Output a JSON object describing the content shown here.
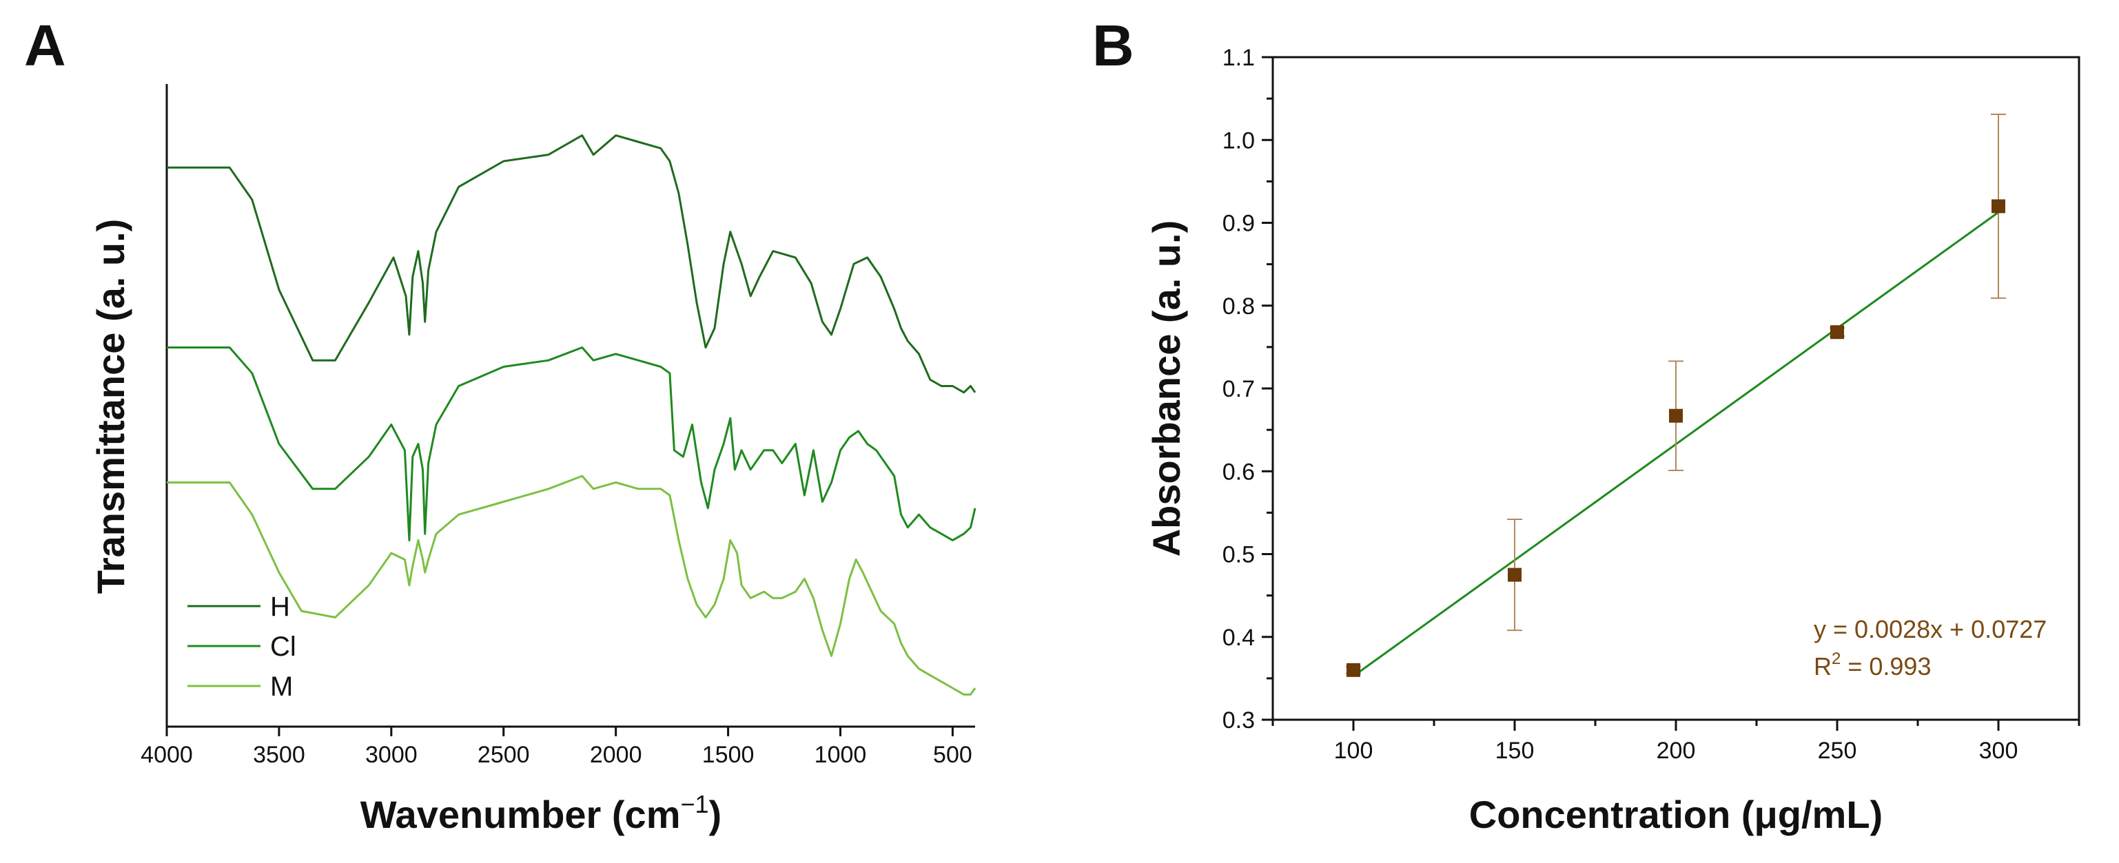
{
  "chart_data": [
    {
      "panel": "A",
      "type": "line",
      "xlabel": "Wavenumber (cm",
      "xlabel_sup": "−1",
      "xlabel_close": ")",
      "ylabel": "Transmittance (a. u.)",
      "xlim": [
        4000,
        400
      ],
      "xticks": [
        "4000",
        "3500",
        "3000",
        "2500",
        "2000",
        "1500",
        "1000",
        "500"
      ],
      "grid": false,
      "legend_position": "bottom-left",
      "series": [
        {
          "name": "H",
          "color": "#1e6b1e",
          "points": [
            [
              4000,
              87
            ],
            [
              3720,
              87
            ],
            [
              3620,
              82
            ],
            [
              3500,
              68
            ],
            [
              3350,
              57
            ],
            [
              3250,
              57
            ],
            [
              3100,
              66
            ],
            [
              2990,
              73
            ],
            [
              2935,
              67
            ],
            [
              2920,
              61
            ],
            [
              2905,
              70
            ],
            [
              2880,
              74
            ],
            [
              2860,
              69
            ],
            [
              2850,
              63
            ],
            [
              2835,
              71
            ],
            [
              2800,
              77
            ],
            [
              2700,
              84
            ],
            [
              2500,
              88
            ],
            [
              2300,
              89
            ],
            [
              2150,
              92
            ],
            [
              2100,
              89
            ],
            [
              2000,
              92
            ],
            [
              1900,
              91
            ],
            [
              1800,
              90
            ],
            [
              1760,
              88
            ],
            [
              1720,
              83
            ],
            [
              1680,
              75
            ],
            [
              1640,
              66
            ],
            [
              1600,
              59
            ],
            [
              1560,
              62
            ],
            [
              1520,
              72
            ],
            [
              1490,
              77
            ],
            [
              1440,
              72
            ],
            [
              1400,
              67
            ],
            [
              1360,
              70
            ],
            [
              1300,
              74
            ],
            [
              1200,
              73
            ],
            [
              1130,
              69
            ],
            [
              1080,
              63
            ],
            [
              1040,
              61
            ],
            [
              1000,
              65
            ],
            [
              940,
              72
            ],
            [
              880,
              73
            ],
            [
              820,
              70
            ],
            [
              760,
              65
            ],
            [
              730,
              62
            ],
            [
              700,
              60
            ],
            [
              650,
              58
            ],
            [
              600,
              54
            ],
            [
              550,
              53
            ],
            [
              500,
              53
            ],
            [
              450,
              52
            ],
            [
              420,
              53
            ],
            [
              400,
              52
            ]
          ]
        },
        {
          "name": "Cl",
          "color": "#1f8a1f",
          "points": [
            [
              4000,
              59
            ],
            [
              3720,
              59
            ],
            [
              3620,
              55
            ],
            [
              3500,
              44
            ],
            [
              3350,
              37
            ],
            [
              3250,
              37
            ],
            [
              3100,
              42
            ],
            [
              3000,
              47
            ],
            [
              2940,
              43
            ],
            [
              2920,
              29
            ],
            [
              2905,
              42
            ],
            [
              2880,
              44
            ],
            [
              2860,
              40
            ],
            [
              2850,
              30
            ],
            [
              2835,
              41
            ],
            [
              2800,
              47
            ],
            [
              2700,
              53
            ],
            [
              2500,
              56
            ],
            [
              2300,
              57
            ],
            [
              2150,
              59
            ],
            [
              2100,
              57
            ],
            [
              2000,
              58
            ],
            [
              1900,
              57
            ],
            [
              1800,
              56
            ],
            [
              1760,
              55
            ],
            [
              1740,
              43
            ],
            [
              1700,
              42
            ],
            [
              1660,
              47
            ],
            [
              1620,
              38
            ],
            [
              1590,
              34
            ],
            [
              1560,
              40
            ],
            [
              1520,
              44
            ],
            [
              1490,
              48
            ],
            [
              1470,
              40
            ],
            [
              1440,
              43
            ],
            [
              1400,
              40
            ],
            [
              1340,
              43
            ],
            [
              1300,
              43
            ],
            [
              1260,
              41
            ],
            [
              1200,
              44
            ],
            [
              1160,
              36
            ],
            [
              1120,
              43
            ],
            [
              1080,
              35
            ],
            [
              1040,
              38
            ],
            [
              1000,
              43
            ],
            [
              960,
              45
            ],
            [
              920,
              46
            ],
            [
              880,
              44
            ],
            [
              840,
              43
            ],
            [
              800,
              41
            ],
            [
              760,
              39
            ],
            [
              730,
              33
            ],
            [
              700,
              31
            ],
            [
              650,
              33
            ],
            [
              600,
              31
            ],
            [
              550,
              30
            ],
            [
              500,
              29
            ],
            [
              450,
              30
            ],
            [
              420,
              31
            ],
            [
              400,
              34
            ]
          ]
        },
        {
          "name": "M",
          "color": "#7cc043",
          "points": [
            [
              4000,
              38
            ],
            [
              3720,
              38
            ],
            [
              3620,
              33
            ],
            [
              3500,
              24
            ],
            [
              3400,
              18
            ],
            [
              3250,
              17
            ],
            [
              3100,
              22
            ],
            [
              3000,
              27
            ],
            [
              2940,
              26
            ],
            [
              2920,
              22
            ],
            [
              2905,
              25
            ],
            [
              2880,
              29
            ],
            [
              2860,
              26
            ],
            [
              2850,
              24
            ],
            [
              2835,
              26
            ],
            [
              2800,
              30
            ],
            [
              2700,
              33
            ],
            [
              2500,
              35
            ],
            [
              2300,
              37
            ],
            [
              2150,
              39
            ],
            [
              2100,
              37
            ],
            [
              2000,
              38
            ],
            [
              1900,
              37
            ],
            [
              1800,
              37
            ],
            [
              1760,
              36
            ],
            [
              1720,
              29
            ],
            [
              1680,
              23
            ],
            [
              1640,
              19
            ],
            [
              1600,
              17
            ],
            [
              1560,
              19
            ],
            [
              1520,
              23
            ],
            [
              1490,
              29
            ],
            [
              1460,
              27
            ],
            [
              1440,
              22
            ],
            [
              1400,
              20
            ],
            [
              1340,
              21
            ],
            [
              1300,
              20
            ],
            [
              1260,
              20
            ],
            [
              1200,
              21
            ],
            [
              1160,
              23
            ],
            [
              1120,
              20
            ],
            [
              1080,
              15
            ],
            [
              1040,
              11
            ],
            [
              1000,
              16
            ],
            [
              960,
              23
            ],
            [
              930,
              26
            ],
            [
              900,
              24
            ],
            [
              860,
              21
            ],
            [
              820,
              18
            ],
            [
              760,
              16
            ],
            [
              730,
              13
            ],
            [
              700,
              11
            ],
            [
              650,
              9
            ],
            [
              600,
              8
            ],
            [
              550,
              7
            ],
            [
              500,
              6
            ],
            [
              450,
              5
            ],
            [
              420,
              5
            ],
            [
              400,
              6
            ]
          ]
        }
      ]
    },
    {
      "panel": "B",
      "type": "scatter",
      "xlabel": "Concentration  (μg/mL)",
      "ylabel": "Absorbance (a. u.)",
      "xlim": [
        75,
        325
      ],
      "ylim": [
        0.3,
        1.1
      ],
      "xticks": [
        100,
        150,
        200,
        250,
        300
      ],
      "yticks": [
        "0.3",
        "0.4",
        "0.5",
        "0.6",
        "0.7",
        "0.8",
        "0.9",
        "1.0",
        "1.1"
      ],
      "grid": false,
      "marker_color": "#6b3a0a",
      "errorbar_color": "#b08a5a",
      "fit_color": "#1f8a1f",
      "points": [
        {
          "x": 100,
          "y": 0.36,
          "err": 0.004
        },
        {
          "x": 150,
          "y": 0.475,
          "err": 0.067
        },
        {
          "x": 200,
          "y": 0.667,
          "err": 0.066
        },
        {
          "x": 250,
          "y": 0.768,
          "err": 0.005
        },
        {
          "x": 300,
          "y": 0.92,
          "err": 0.111
        }
      ],
      "fit": {
        "slope": 0.0028,
        "intercept": 0.0727,
        "x_range": [
          100,
          300
        ]
      },
      "annotation": {
        "equation": "y = 0.0028x + 0.0727",
        "r2_prefix": "R",
        "r2_sup": "2",
        "r2_value": " = 0.993",
        "color": "#7a4a12"
      }
    }
  ]
}
